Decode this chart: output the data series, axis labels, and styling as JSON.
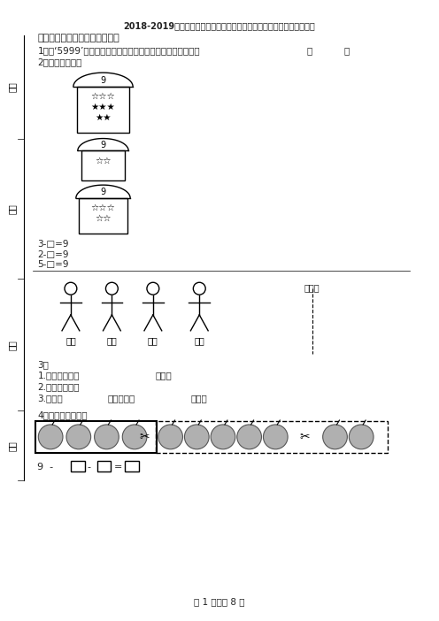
{
  "title": "2018-2019年廊坊市广阳区阳光小学一年级上册数学模拟期末测试无答案",
  "section1": "一、想一想，填一填（填空题）",
  "q1": "1．与‘5999’相邻的前面的一个数和后面的一个数，分别写作",
  "q2": "2．接着画下去。",
  "q3_lines": [
    "3-□=9",
    "2-□=9",
    "5-□=9"
  ],
  "names": [
    "小芳",
    "小华",
    "小林",
    "小明"
  ],
  "q3_sub1a": "1.小明的后面有",
  "q3_sub1b": "个人。",
  "q3_sub2a": "2.小芳的前面是",
  "q3_sub2b": "。",
  "q3_sub3a": "3.小华在",
  "q3_sub3b": "的前面，在",
  "q3_sub3c": "后面。",
  "q4": "4．还剩几个苹果？",
  "footer": "第 1 页，共 8 页",
  "bg_color": "#ffffff",
  "mushroom1_stars": [
    "☆☆☆",
    "★★★",
    "★★"
  ],
  "mushroom2_stars": [
    "☆☆"
  ],
  "mushroom3_stars": [
    "☆☆☆",
    "☆☆"
  ],
  "left_labels": [
    "分数",
    "姓名",
    "题号",
    "班级"
  ],
  "接点线": "接点线"
}
